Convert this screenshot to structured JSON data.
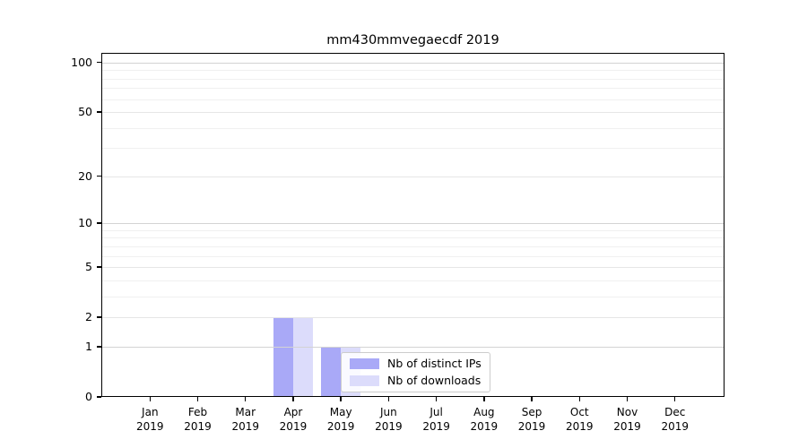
{
  "chart_data": {
    "type": "bar",
    "title": "mm430mmvegaecdf 2019",
    "xlabel": "",
    "ylabel": "",
    "categories": [
      "Jan 2019",
      "Feb 2019",
      "Mar 2019",
      "Apr 2019",
      "May 2019",
      "Jun 2019",
      "Jul 2019",
      "Aug 2019",
      "Sep 2019",
      "Oct 2019",
      "Nov 2019",
      "Dec 2019"
    ],
    "series": [
      {
        "name": "Nb of distinct IPs",
        "color": "#a9a9f7",
        "values": [
          0,
          0,
          0,
          2,
          1,
          0,
          0,
          0,
          0,
          0,
          0,
          0
        ]
      },
      {
        "name": "Nb of downloads",
        "color": "#dcdcfb",
        "values": [
          0,
          0,
          0,
          2,
          1,
          0,
          0,
          0,
          0,
          0,
          0,
          0
        ]
      }
    ],
    "yscale": "log1p",
    "ylim": [
      0,
      113
    ],
    "yticks": [
      0,
      1,
      2,
      5,
      10,
      20,
      50,
      100
    ],
    "minor_yticks": [
      3,
      4,
      6,
      7,
      8,
      9,
      30,
      40,
      60,
      70,
      80,
      90
    ],
    "grid": "horizontal",
    "legend_position": "inside-bottom-center"
  },
  "colors": {
    "background": "#ffffff",
    "spine": "#000000",
    "grid_decade": "#d3d3d3",
    "grid_major": "#e6e6e6",
    "grid_minor": "#f0f0f0",
    "text": "#000000",
    "legend_border": "#cccccc"
  }
}
